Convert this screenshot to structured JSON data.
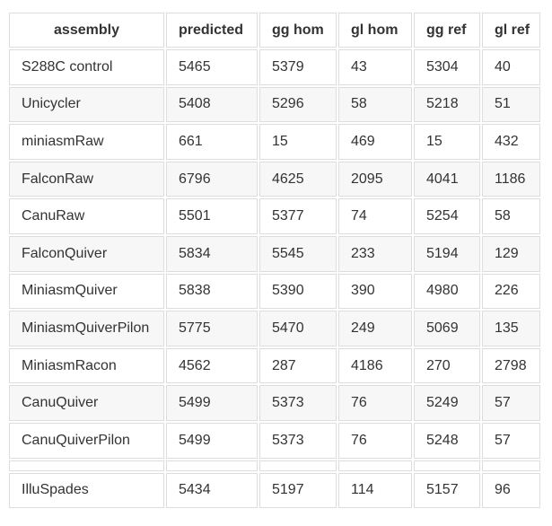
{
  "table": {
    "headers": [
      "assembly",
      "predicted",
      "gg hom",
      "gl hom",
      "gg ref",
      "gl ref"
    ],
    "rows": [
      [
        "S288C control",
        "5465",
        "5379",
        "43",
        "5304",
        "40"
      ],
      [
        "Unicycler",
        "5408",
        "5296",
        "58",
        "5218",
        "51"
      ],
      [
        "miniasmRaw",
        "661",
        "15",
        "469",
        "15",
        "432"
      ],
      [
        "FalconRaw",
        "6796",
        "4625",
        "2095",
        "4041",
        "1186"
      ],
      [
        "CanuRaw",
        "5501",
        "5377",
        "74",
        "5254",
        "58"
      ],
      [
        "FalconQuiver",
        "5834",
        "5545",
        "233",
        "5194",
        "129"
      ],
      [
        "MiniasmQuiver",
        "5838",
        "5390",
        "390",
        "4980",
        "226"
      ],
      [
        "MiniasmQuiverPilon",
        "5775",
        "5470",
        "249",
        "5069",
        "135"
      ],
      [
        "MiniasmRacon",
        "4562",
        "287",
        "4186",
        "270",
        "2798"
      ],
      [
        "CanuQuiver",
        "5499",
        "5373",
        "76",
        "5249",
        "57"
      ],
      [
        "CanuQuiverPilon",
        "5499",
        "5373",
        "76",
        "5248",
        "57"
      ],
      [
        "",
        "",
        "",
        "",
        "",
        ""
      ],
      [
        "IlluSpades",
        "5434",
        "5197",
        "114",
        "5157",
        "96"
      ]
    ]
  }
}
